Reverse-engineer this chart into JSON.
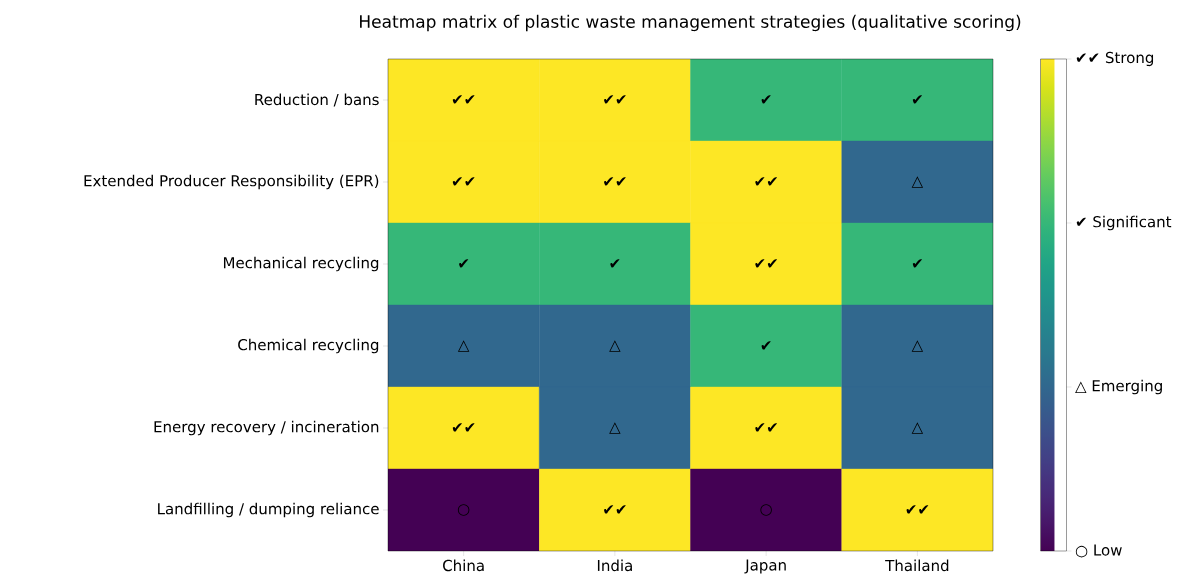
{
  "chart_data": {
    "type": "heatmap",
    "title": "Heatmap matrix of plastic waste management strategies (qualitative scoring)",
    "categories": [
      "China",
      "India",
      "Japan",
      "Thailand"
    ],
    "y_categories": [
      "Reduction / bans",
      "Extended Producer Responsibility (EPR)",
      "Mechanical recycling",
      "Chemical recycling",
      "Energy recovery / incineration",
      "Landfilling / dumping reliance"
    ],
    "cells": [
      [
        3,
        3,
        2,
        2
      ],
      [
        3,
        3,
        3,
        1
      ],
      [
        2,
        2,
        3,
        2
      ],
      [
        1,
        1,
        2,
        1
      ],
      [
        3,
        1,
        3,
        1
      ],
      [
        0,
        3,
        0,
        3
      ]
    ],
    "cell_labels": [
      [
        "✔✔",
        "✔✔",
        "✔",
        "✔"
      ],
      [
        "✔✔",
        "✔✔",
        "✔✔",
        "△"
      ],
      [
        "✔",
        "✔",
        "✔✔",
        "✔"
      ],
      [
        "△",
        "△",
        "✔",
        "△"
      ],
      [
        "✔✔",
        "△",
        "✔✔",
        "△"
      ],
      [
        "○",
        "✔✔",
        "○",
        "✔✔"
      ]
    ],
    "clim": [
      0,
      3
    ],
    "cticks": [
      {
        "value": 0,
        "label": "○ Low"
      },
      {
        "value": 1,
        "label": "△ Emerging"
      },
      {
        "value": 2,
        "label": "✔ Significant"
      },
      {
        "value": 3,
        "label": "✔✔ Strong"
      }
    ]
  }
}
